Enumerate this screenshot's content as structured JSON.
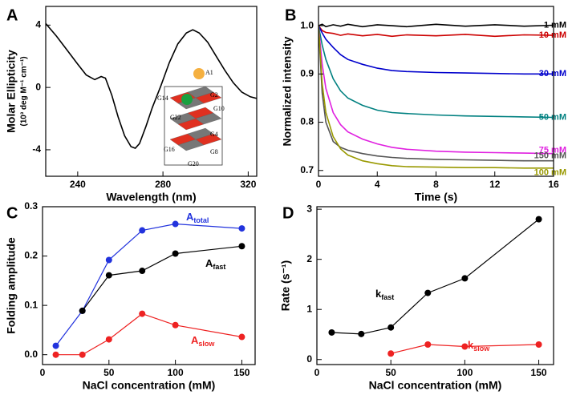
{
  "chart_data": [
    {
      "type": "line",
      "panel": "A",
      "xlabel": "Wavelength (nm)",
      "ylabel": "Molar Ellipticity",
      "ylabel_units": "(10³ deg M⁻¹ cm⁻¹)",
      "xlim": [
        225,
        324
      ],
      "ylim": [
        -5.7,
        5.2
      ],
      "xticks": [
        240,
        280,
        320
      ],
      "yticks": [
        -4,
        0,
        4
      ],
      "inset_labels": [
        "A1",
        "G2",
        "G10",
        "G14",
        "G22",
        "G4",
        "G16",
        "G8",
        "G20"
      ],
      "series": [
        {
          "color": "#000000",
          "x": [
            225,
            230,
            235,
            240,
            244,
            248,
            251,
            253,
            256,
            259,
            262,
            265,
            267,
            269,
            272,
            275,
            279,
            283,
            287,
            291,
            294,
            297,
            301,
            305,
            309,
            313,
            317,
            321,
            324
          ],
          "values": [
            4.1,
            3.3,
            2.4,
            1.5,
            0.8,
            0.5,
            0.7,
            0.6,
            -0.5,
            -1.9,
            -3.1,
            -3.8,
            -3.9,
            -3.6,
            -2.5,
            -1.3,
            0.1,
            1.6,
            2.8,
            3.5,
            3.7,
            3.5,
            2.9,
            2.0,
            1.1,
            0.3,
            -0.3,
            -0.6,
            -0.7
          ]
        }
      ]
    },
    {
      "type": "line",
      "panel": "B",
      "xlabel": "Time (s)",
      "ylabel": "Normalized intensity",
      "xlim": [
        0,
        16
      ],
      "ylim": [
        0.688,
        1.04
      ],
      "xticks": [
        0,
        4,
        8,
        12,
        16
      ],
      "yticks": [
        0.7,
        0.8,
        0.9,
        {
          "value": 1,
          "label": "1.0"
        }
      ],
      "series": [
        {
          "name": "1 mM",
          "color": "#000000",
          "x": [
            0,
            0.25,
            0.5,
            1,
            1.5,
            2,
            3,
            4,
            5,
            6,
            8,
            10,
            12,
            14,
            16
          ],
          "values": [
            1.0,
            1.003,
            0.998,
            1.002,
            0.999,
            1.003,
            0.998,
            1.002,
            1.0,
            0.998,
            1.003,
            0.999,
            1.002,
            0.999,
            1.001
          ]
        },
        {
          "name": "10 mM",
          "color": "#cc0000",
          "x": [
            0,
            0.25,
            0.5,
            1,
            1.5,
            2,
            3,
            4,
            5,
            6,
            8,
            10,
            12,
            14,
            16
          ],
          "values": [
            1.0,
            0.99,
            0.986,
            0.984,
            0.98,
            0.983,
            0.979,
            0.982,
            0.978,
            0.981,
            0.979,
            0.982,
            0.978,
            0.981,
            0.98
          ]
        },
        {
          "name": "30 mM",
          "color": "#0000cc",
          "x": [
            0,
            0.25,
            0.5,
            1,
            1.5,
            2,
            3,
            4,
            5,
            6,
            8,
            10,
            12,
            14,
            16
          ],
          "values": [
            1.0,
            0.985,
            0.972,
            0.955,
            0.94,
            0.93,
            0.92,
            0.912,
            0.907,
            0.905,
            0.903,
            0.902,
            0.901,
            0.9,
            0.9
          ]
        },
        {
          "name": "50 mM",
          "color": "#008080",
          "x": [
            0,
            0.25,
            0.5,
            1,
            1.5,
            2,
            3,
            4,
            5,
            6,
            8,
            10,
            12,
            14,
            16
          ],
          "values": [
            1.0,
            0.96,
            0.93,
            0.89,
            0.865,
            0.85,
            0.835,
            0.825,
            0.82,
            0.818,
            0.815,
            0.813,
            0.812,
            0.811,
            0.81
          ]
        },
        {
          "name": "75 mM",
          "color": "#e020e0",
          "x": [
            0,
            0.25,
            0.5,
            1,
            1.5,
            2,
            3,
            4,
            5,
            6,
            8,
            10,
            12,
            14,
            16
          ],
          "values": [
            1.0,
            0.92,
            0.87,
            0.82,
            0.795,
            0.78,
            0.765,
            0.755,
            0.748,
            0.744,
            0.74,
            0.738,
            0.737,
            0.736,
            0.735
          ]
        },
        {
          "name": "150 mM",
          "color": "#555555",
          "x": [
            0,
            0.25,
            0.5,
            1,
            1.5,
            2,
            3,
            4,
            5,
            6,
            8,
            10,
            12,
            14,
            16
          ],
          "values": [
            1.0,
            0.86,
            0.8,
            0.76,
            0.748,
            0.742,
            0.735,
            0.73,
            0.727,
            0.725,
            0.723,
            0.722,
            0.721,
            0.72,
            0.72
          ]
        },
        {
          "name": "100 mM",
          "color": "#999900",
          "x": [
            0,
            0.25,
            0.5,
            1,
            1.5,
            2,
            3,
            4,
            5,
            6,
            8,
            10,
            12,
            14,
            16
          ],
          "values": [
            1.0,
            0.88,
            0.82,
            0.77,
            0.745,
            0.732,
            0.72,
            0.714,
            0.71,
            0.708,
            0.707,
            0.706,
            0.706,
            0.705,
            0.705
          ]
        }
      ]
    },
    {
      "type": "line",
      "panel": "C",
      "xlabel": "NaCl concentration (mM)",
      "ylabel": "Folding amplitude",
      "markers": true,
      "xlim": [
        0,
        160
      ],
      "ylim": [
        -0.02,
        0.3
      ],
      "xticks": [
        0,
        50,
        100,
        150
      ],
      "yticks": [
        {
          "value": 0,
          "label": "0.0"
        },
        0.1,
        0.2,
        0.3
      ],
      "series": [
        {
          "name": "A",
          "subscript": "total",
          "color": "#2233dd",
          "x": [
            10,
            30,
            50,
            75,
            100,
            150
          ],
          "values": [
            0.018,
            0.089,
            0.192,
            0.252,
            0.265,
            0.256
          ]
        },
        {
          "name": "A",
          "subscript": "fast",
          "color": "#000000",
          "x": [
            30,
            50,
            75,
            100,
            150
          ],
          "values": [
            0.089,
            0.161,
            0.17,
            0.205,
            0.22
          ]
        },
        {
          "name": "A",
          "subscript": "slow",
          "color": "#ee2222",
          "x": [
            10,
            30,
            50,
            75,
            100,
            150
          ],
          "values": [
            0,
            0,
            0.031,
            0.083,
            0.06,
            0.036
          ]
        }
      ]
    },
    {
      "type": "line",
      "panel": "D",
      "xlabel": "NaCl concentration (mM)",
      "ylabel": "Rate (s⁻¹)",
      "markers": true,
      "xlim": [
        0,
        160
      ],
      "ylim": [
        -0.1,
        3.05
      ],
      "xticks": [
        0,
        50,
        100,
        150
      ],
      "yticks": [
        0,
        1,
        2,
        3
      ],
      "series": [
        {
          "name": "k",
          "subscript": "fast",
          "color": "#000000",
          "x": [
            10,
            30,
            50,
            75,
            100,
            150
          ],
          "values": [
            0.54,
            0.51,
            0.64,
            1.33,
            1.62,
            2.8
          ]
        },
        {
          "name": "k",
          "subscript": "slow",
          "color": "#ee2222",
          "x": [
            50,
            75,
            100,
            150
          ],
          "values": [
            0.12,
            0.3,
            0.26,
            0.3
          ]
        }
      ]
    }
  ]
}
